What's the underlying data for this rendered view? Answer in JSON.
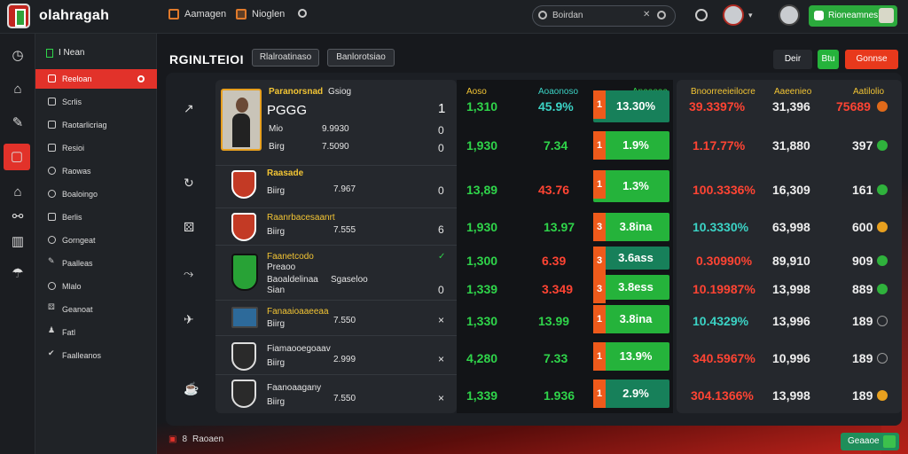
{
  "app": {
    "brand": "olahragah"
  },
  "topbar": {
    "nav": [
      {
        "label": "Aamagen",
        "icon": "calendar-icon"
      },
      {
        "label": "Nioglen",
        "icon": "grid-icon"
      }
    ],
    "search": {
      "value": "Boirdan"
    },
    "cta_label": "Rioneamnes"
  },
  "sidebar": {
    "header": "I Nean",
    "items": [
      {
        "label": "Reeloan",
        "active": true
      },
      {
        "label": "Scrlis"
      },
      {
        "label": "Raotarlicriag"
      },
      {
        "label": "Resioi"
      },
      {
        "label": "Raowas"
      },
      {
        "label": "Boaloingo"
      },
      {
        "label": "Berlis"
      },
      {
        "label": "Gorngeat"
      },
      {
        "label": "Paalleas"
      },
      {
        "label": "Mlalo"
      },
      {
        "label": "Geanoat"
      },
      {
        "label": "Fatl"
      },
      {
        "label": "Faalleanos"
      }
    ]
  },
  "main": {
    "title": "RGINLTEIOI",
    "chips": [
      "Rlalroatinaso",
      "Banlorotsiao"
    ],
    "actions": {
      "b1": "Deir",
      "b2": "Btu",
      "b3": "Gonnse"
    },
    "columns": {
      "m1": "Aoso",
      "m2": "Aoaonoso",
      "m3": "Anaaoaa",
      "r1": "Bnoorreeieilocre",
      "r2": "Aaeenieo",
      "r3": "Aatilolio"
    }
  },
  "matches": [
    {
      "team": "Paranorsnad",
      "sub": "Gsiog",
      "ln1": "PGGG",
      "ln2": "Mio",
      "ln2v": "9.9930",
      "ln3": "Birg",
      "ln3v": "7.5090",
      "flag": "1",
      "flag2": "0",
      "flag3": "0",
      "m1": "1,310",
      "m2": "45.9%",
      "score_n": "1",
      "score": "13.30%",
      "r1": "39.3397%",
      "r2": "31,396",
      "r3": "75689"
    },
    {
      "team": "",
      "sub": "",
      "m1": "1,930",
      "m2": "7.34",
      "score_n": "1",
      "score": "1.9%",
      "r1": "1.17.77%",
      "r2": "31,880",
      "r3": "397"
    },
    {
      "team": "Raasade",
      "sub": "Biirg",
      "val": "7.967",
      "flag": "0",
      "m1": "13,89",
      "m2": "43.76",
      "score_n": "1",
      "score": "1.3%",
      "r1": "100.3336%",
      "r2": "16,309",
      "r3": "161"
    },
    {
      "team": "Raanrbacesaanrt",
      "sub": "Biirg",
      "val": "7.555",
      "flag": "6",
      "m1": "1,930",
      "m2": "13.97",
      "score_n": "3",
      "score": "3.8ina",
      "r1": "10.3330%",
      "r2": "63,998",
      "r3": "600"
    },
    {
      "team": "Faanetcodo",
      "sub": "Preaoo",
      "ln3": "Baoaldelinaa",
      "ln3v": "Sgaseloo",
      "ln4": "Sian",
      "flag": "0",
      "m1": "1,300",
      "m2": "6.39",
      "score_n": "3",
      "score": "3.6ass",
      "r1": "0.30990%",
      "r2": "89,910",
      "r3": "909"
    },
    {
      "team": "",
      "sub": "",
      "m1": "1,339",
      "m2": "3.349",
      "score_n": "3",
      "score": "3.8ess",
      "r1": "10.19987%",
      "r2": "13,998",
      "r3": "889"
    },
    {
      "team": "Fanaaioaaeeaa",
      "sub": "Biirg",
      "val": "7.550",
      "flag": "×",
      "m1": "1,330",
      "m2": "13.99",
      "score_n": "1",
      "score": "3.8ina",
      "r1": "10.4329%",
      "r2": "13,996",
      "r3": "189"
    },
    {
      "team": "Fiamaooegoaav",
      "sub": "Biirg",
      "val": "2.999",
      "flag": "×",
      "m1": "4,280",
      "m2": "7.33",
      "score_n": "1",
      "score": "13.9%",
      "r1": "340.5967%",
      "r2": "10,996",
      "r3": "189"
    },
    {
      "team": "Faanoaagany",
      "sub": "Biirg",
      "val": "7.550",
      "flag": "×",
      "m1": "1,339",
      "m2": "1.936",
      "score_n": "1",
      "score": "2.9%",
      "r1": "304.1366%",
      "r2": "13,998",
      "r3": "189"
    }
  ],
  "footer": {
    "left_num": "8",
    "left_label": "Raoaen",
    "btn": "Geaaoe"
  },
  "colors": {
    "accent": "#e2322a",
    "green": "#2ba93c",
    "bg": "#15171b"
  }
}
